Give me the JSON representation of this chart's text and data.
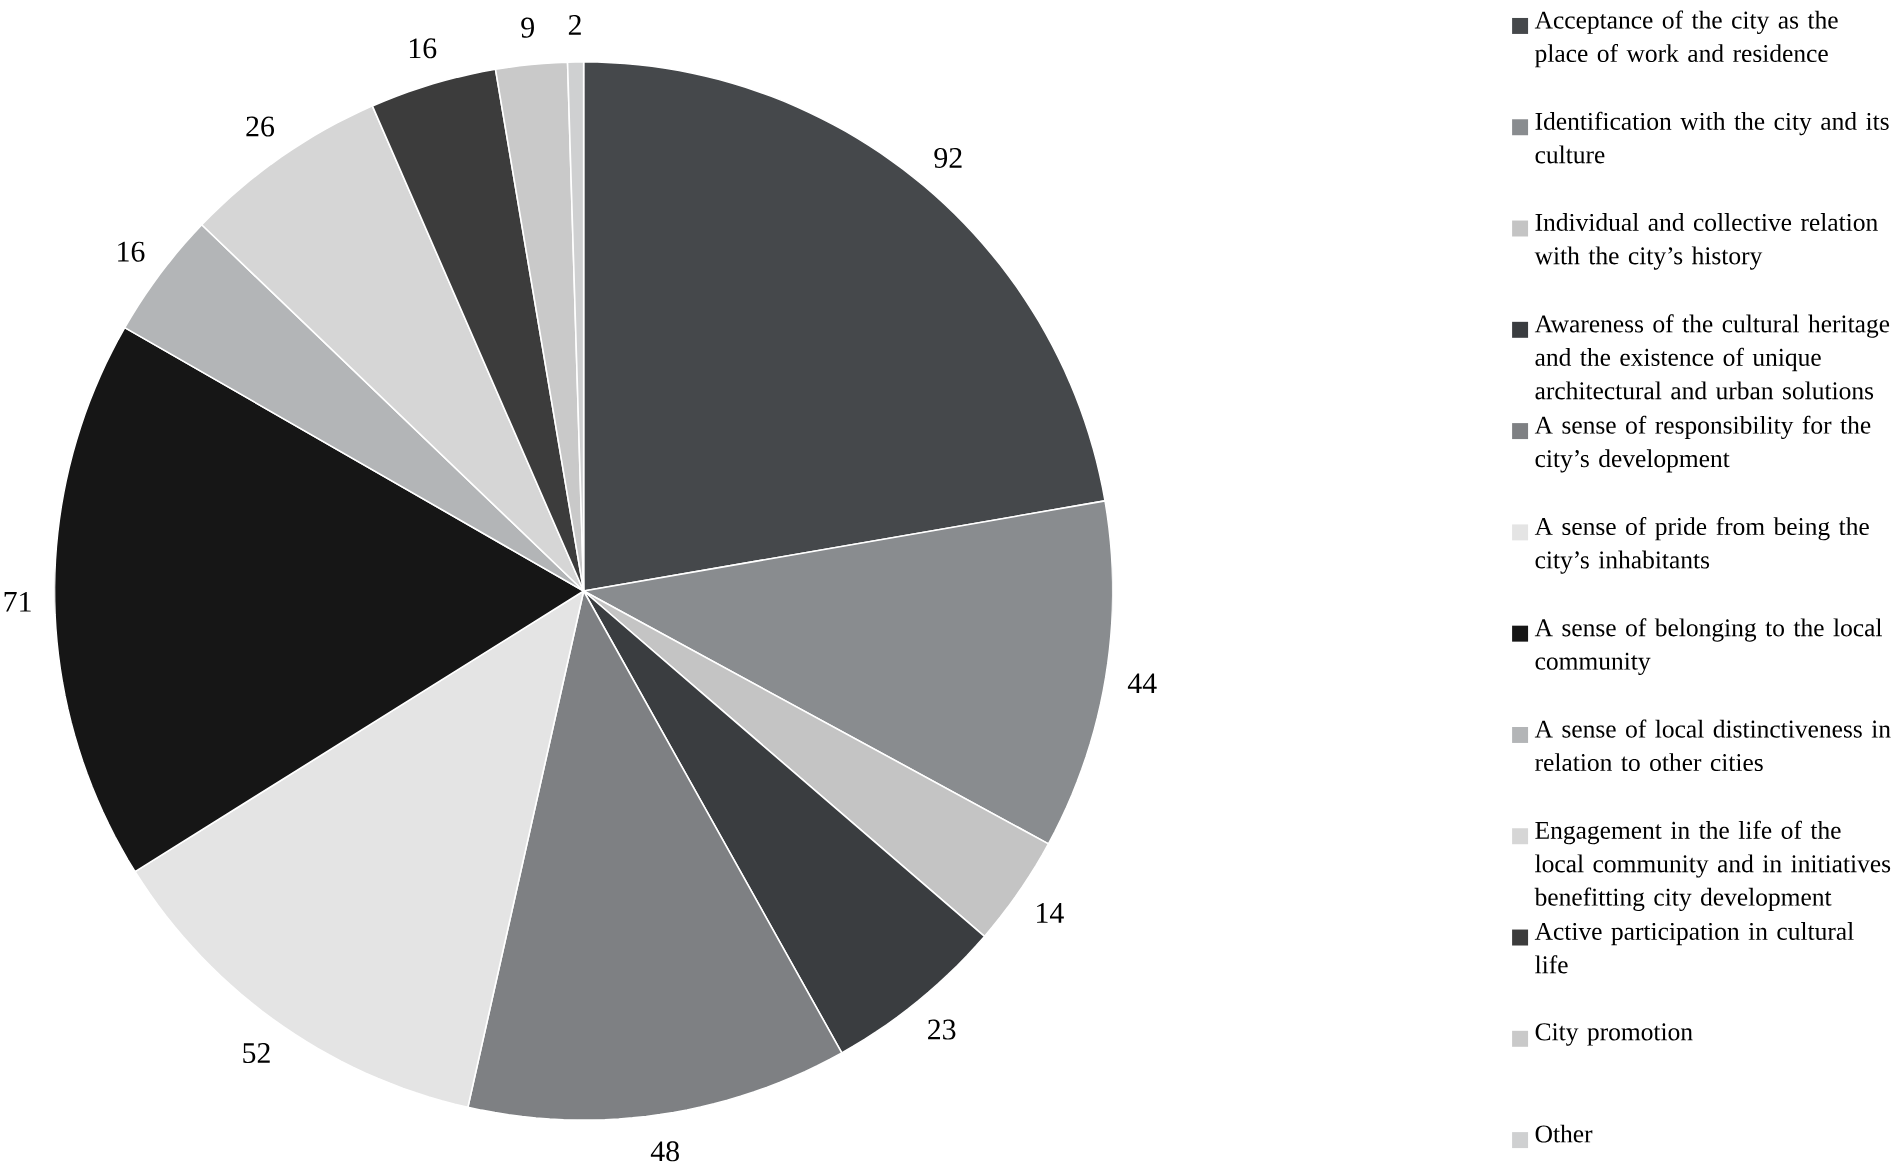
{
  "chart_data": {
    "type": "pie",
    "categories": [
      "Acceptance of the city as the place of work and residence",
      "Identification with the city and its culture",
      "Individual and collective relation with the city’s history",
      "Awareness of the cultural heritage and the existence of unique architectural and urban solutions",
      "A sense of responsibility for the city’s development",
      "A sense of pride from being the city’s inhabitants",
      "A sense of belonging to the local community",
      "A sense of local distinctiveness in relation to other cities",
      "Engagement in the life of the local community and in initiatives benefitting city development",
      "Active participation in cultural life",
      "City promotion",
      "Other"
    ],
    "values": [
      92,
      44,
      14,
      23,
      48,
      52,
      71,
      16,
      26,
      16,
      9,
      2
    ],
    "colors": [
      "#45484b",
      "#898c8f",
      "#c4c4c4",
      "#3a3d40",
      "#7e8083",
      "#e4e4e4",
      "#161616",
      "#b3b5b7",
      "#d6d6d6",
      "#3c3c3c",
      "#c9c9c9",
      "#cfd0d1"
    ],
    "data_labels": true,
    "legend": "right"
  }
}
